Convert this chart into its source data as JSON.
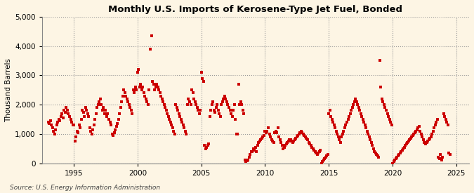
{
  "title": "Monthly U.S. Imports of Kerosene-Type Jet Fuel, Bonded",
  "ylabel": "Thousand Barrels",
  "source": "Source: U.S. Energy Information Administration",
  "background_color": "#fdf5e4",
  "dot_color": "#cc0000",
  "ylim": [
    0,
    5000
  ],
  "yticks": [
    0,
    1000,
    2000,
    3000,
    4000,
    5000
  ],
  "xlim_start": 1992.5,
  "xlim_end": 2026.0,
  "xticks": [
    1995,
    2000,
    2005,
    2010,
    2015,
    2020,
    2025
  ],
  "data_points_by_year_month": [
    [
      1993,
      1,
      1400
    ],
    [
      1993,
      2,
      1350
    ],
    [
      1993,
      3,
      1450
    ],
    [
      1993,
      4,
      1300
    ],
    [
      1993,
      5,
      1200
    ],
    [
      1993,
      6,
      1100
    ],
    [
      1993,
      7,
      1000
    ],
    [
      1993,
      8,
      1150
    ],
    [
      1993,
      9,
      1300
    ],
    [
      1993,
      10,
      1400
    ],
    [
      1993,
      11,
      1500
    ],
    [
      1993,
      12,
      1450
    ],
    [
      1994,
      1,
      1600
    ],
    [
      1994,
      2,
      1700
    ],
    [
      1994,
      3,
      1550
    ],
    [
      1994,
      4,
      1800
    ],
    [
      1994,
      5,
      1750
    ],
    [
      1994,
      6,
      1900
    ],
    [
      1994,
      7,
      1800
    ],
    [
      1994,
      8,
      1700
    ],
    [
      1994,
      9,
      1600
    ],
    [
      1994,
      10,
      1500
    ],
    [
      1994,
      11,
      1400
    ],
    [
      1994,
      12,
      1300
    ],
    [
      1995,
      1,
      1300
    ],
    [
      1995,
      2,
      750
    ],
    [
      1995,
      3,
      900
    ],
    [
      1995,
      4,
      1100
    ],
    [
      1995,
      5,
      1050
    ],
    [
      1995,
      6,
      1300
    ],
    [
      1995,
      7,
      1200
    ],
    [
      1995,
      8,
      1500
    ],
    [
      1995,
      9,
      1800
    ],
    [
      1995,
      10,
      1750
    ],
    [
      1995,
      11,
      1600
    ],
    [
      1995,
      12,
      1900
    ],
    [
      1996,
      1,
      1800
    ],
    [
      1996,
      2,
      1700
    ],
    [
      1996,
      3,
      1600
    ],
    [
      1996,
      4,
      1200
    ],
    [
      1996,
      5,
      1100
    ],
    [
      1996,
      6,
      1000
    ],
    [
      1996,
      7,
      1150
    ],
    [
      1996,
      8,
      1300
    ],
    [
      1996,
      9,
      1500
    ],
    [
      1996,
      10,
      1700
    ],
    [
      1996,
      11,
      1900
    ],
    [
      1996,
      12,
      2000
    ],
    [
      1997,
      1,
      2100
    ],
    [
      1997,
      2,
      2200
    ],
    [
      1997,
      3,
      2000
    ],
    [
      1997,
      4,
      1800
    ],
    [
      1997,
      5,
      1900
    ],
    [
      1997,
      6,
      1700
    ],
    [
      1997,
      7,
      1800
    ],
    [
      1997,
      8,
      1600
    ],
    [
      1997,
      9,
      1700
    ],
    [
      1997,
      10,
      1500
    ],
    [
      1997,
      11,
      1400
    ],
    [
      1997,
      12,
      1300
    ],
    [
      1998,
      1,
      1000
    ],
    [
      1998,
      2,
      950
    ],
    [
      1998,
      3,
      1050
    ],
    [
      1998,
      4,
      1150
    ],
    [
      1998,
      5,
      1250
    ],
    [
      1998,
      6,
      1350
    ],
    [
      1998,
      7,
      1500
    ],
    [
      1998,
      8,
      1700
    ],
    [
      1998,
      9,
      1900
    ],
    [
      1998,
      10,
      2100
    ],
    [
      1998,
      11,
      2300
    ],
    [
      1998,
      12,
      2500
    ],
    [
      1999,
      1,
      2400
    ],
    [
      1999,
      2,
      2300
    ],
    [
      1999,
      3,
      2200
    ],
    [
      1999,
      4,
      2100
    ],
    [
      1999,
      5,
      2000
    ],
    [
      1999,
      6,
      1900
    ],
    [
      1999,
      7,
      1800
    ],
    [
      1999,
      8,
      1700
    ],
    [
      1999,
      9,
      2500
    ],
    [
      1999,
      10,
      2400
    ],
    [
      1999,
      11,
      2600
    ],
    [
      1999,
      12,
      2500
    ],
    [
      2000,
      1,
      3100
    ],
    [
      2000,
      2,
      3200
    ],
    [
      2000,
      3,
      2600
    ],
    [
      2000,
      4,
      2700
    ],
    [
      2000,
      5,
      2500
    ],
    [
      2000,
      6,
      2600
    ],
    [
      2000,
      7,
      2400
    ],
    [
      2000,
      8,
      2300
    ],
    [
      2000,
      9,
      2200
    ],
    [
      2000,
      10,
      2100
    ],
    [
      2000,
      11,
      2000
    ],
    [
      2000,
      12,
      2500
    ],
    [
      2001,
      1,
      3900
    ],
    [
      2001,
      2,
      4350
    ],
    [
      2001,
      3,
      2800
    ],
    [
      2001,
      4,
      2700
    ],
    [
      2001,
      5,
      2500
    ],
    [
      2001,
      6,
      2600
    ],
    [
      2001,
      7,
      2700
    ],
    [
      2001,
      8,
      2600
    ],
    [
      2001,
      9,
      2500
    ],
    [
      2001,
      10,
      2400
    ],
    [
      2001,
      11,
      2300
    ],
    [
      2001,
      12,
      2200
    ],
    [
      2002,
      1,
      2100
    ],
    [
      2002,
      2,
      2000
    ],
    [
      2002,
      3,
      1900
    ],
    [
      2002,
      4,
      1800
    ],
    [
      2002,
      5,
      1700
    ],
    [
      2002,
      6,
      1600
    ],
    [
      2002,
      7,
      1500
    ],
    [
      2002,
      8,
      1400
    ],
    [
      2002,
      9,
      1300
    ],
    [
      2002,
      10,
      1200
    ],
    [
      2002,
      11,
      1100
    ],
    [
      2002,
      12,
      1000
    ],
    [
      2003,
      1,
      2000
    ],
    [
      2003,
      2,
      1900
    ],
    [
      2003,
      3,
      1800
    ],
    [
      2003,
      4,
      1700
    ],
    [
      2003,
      5,
      1600
    ],
    [
      2003,
      6,
      1500
    ],
    [
      2003,
      7,
      1400
    ],
    [
      2003,
      8,
      1300
    ],
    [
      2003,
      9,
      1200
    ],
    [
      2003,
      10,
      1100
    ],
    [
      2003,
      11,
      1000
    ],
    [
      2003,
      12,
      2000
    ],
    [
      2004,
      1,
      2200
    ],
    [
      2004,
      2,
      2100
    ],
    [
      2004,
      3,
      2000
    ],
    [
      2004,
      4,
      2500
    ],
    [
      2004,
      5,
      2400
    ],
    [
      2004,
      6,
      2200
    ],
    [
      2004,
      7,
      2100
    ],
    [
      2004,
      8,
      2000
    ],
    [
      2004,
      9,
      1900
    ],
    [
      2004,
      10,
      1800
    ],
    [
      2004,
      11,
      1700
    ],
    [
      2004,
      12,
      1800
    ],
    [
      2005,
      1,
      3100
    ],
    [
      2005,
      2,
      2900
    ],
    [
      2005,
      3,
      2800
    ],
    [
      2005,
      4,
      600
    ],
    [
      2005,
      5,
      500
    ],
    [
      2005,
      6,
      550
    ],
    [
      2005,
      7,
      600
    ],
    [
      2005,
      8,
      650
    ],
    [
      2005,
      9,
      1600
    ],
    [
      2005,
      10,
      1800
    ],
    [
      2005,
      11,
      2000
    ],
    [
      2005,
      12,
      2100
    ],
    [
      2006,
      1,
      1800
    ],
    [
      2006,
      2,
      1750
    ],
    [
      2006,
      3,
      1900
    ],
    [
      2006,
      4,
      2000
    ],
    [
      2006,
      5,
      1800
    ],
    [
      2006,
      6,
      1700
    ],
    [
      2006,
      7,
      1600
    ],
    [
      2006,
      8,
      2000
    ],
    [
      2006,
      9,
      2100
    ],
    [
      2006,
      10,
      2200
    ],
    [
      2006,
      11,
      2300
    ],
    [
      2006,
      12,
      2200
    ],
    [
      2007,
      1,
      2100
    ],
    [
      2007,
      2,
      2000
    ],
    [
      2007,
      3,
      1900
    ],
    [
      2007,
      4,
      1800
    ],
    [
      2007,
      5,
      1700
    ],
    [
      2007,
      6,
      1600
    ],
    [
      2007,
      7,
      1800
    ],
    [
      2007,
      8,
      2000
    ],
    [
      2007,
      9,
      1500
    ],
    [
      2007,
      10,
      1000
    ],
    [
      2007,
      11,
      1000
    ],
    [
      2007,
      12,
      2700
    ],
    [
      2008,
      1,
      2000
    ],
    [
      2008,
      2,
      2100
    ],
    [
      2008,
      3,
      2000
    ],
    [
      2008,
      4,
      1800
    ],
    [
      2008,
      5,
      1700
    ],
    [
      2008,
      6,
      100
    ],
    [
      2008,
      7,
      50
    ],
    [
      2008,
      8,
      80
    ],
    [
      2008,
      9,
      100
    ],
    [
      2008,
      10,
      200
    ],
    [
      2008,
      11,
      300
    ],
    [
      2008,
      12,
      400
    ],
    [
      2009,
      1,
      400
    ],
    [
      2009,
      2,
      500
    ],
    [
      2009,
      3,
      450
    ],
    [
      2009,
      4,
      550
    ],
    [
      2009,
      5,
      400
    ],
    [
      2009,
      6,
      600
    ],
    [
      2009,
      7,
      700
    ],
    [
      2009,
      8,
      750
    ],
    [
      2009,
      9,
      800
    ],
    [
      2009,
      10,
      850
    ],
    [
      2009,
      11,
      900
    ],
    [
      2009,
      12,
      950
    ],
    [
      2010,
      1,
      1100
    ],
    [
      2010,
      2,
      1050
    ],
    [
      2010,
      3,
      1100
    ],
    [
      2010,
      4,
      1200
    ],
    [
      2010,
      5,
      1000
    ],
    [
      2010,
      6,
      900
    ],
    [
      2010,
      7,
      800
    ],
    [
      2010,
      8,
      750
    ],
    [
      2010,
      9,
      700
    ],
    [
      2010,
      10,
      1050
    ],
    [
      2010,
      11,
      1100
    ],
    [
      2010,
      12,
      1050
    ],
    [
      2011,
      1,
      1200
    ],
    [
      2011,
      2,
      900
    ],
    [
      2011,
      3,
      800
    ],
    [
      2011,
      4,
      700
    ],
    [
      2011,
      5,
      600
    ],
    [
      2011,
      6,
      500
    ],
    [
      2011,
      7,
      550
    ],
    [
      2011,
      8,
      600
    ],
    [
      2011,
      9,
      650
    ],
    [
      2011,
      10,
      700
    ],
    [
      2011,
      11,
      750
    ],
    [
      2011,
      12,
      800
    ],
    [
      2012,
      1,
      800
    ],
    [
      2012,
      2,
      750
    ],
    [
      2012,
      3,
      700
    ],
    [
      2012,
      4,
      750
    ],
    [
      2012,
      5,
      800
    ],
    [
      2012,
      6,
      850
    ],
    [
      2012,
      7,
      900
    ],
    [
      2012,
      8,
      950
    ],
    [
      2012,
      9,
      1000
    ],
    [
      2012,
      10,
      1050
    ],
    [
      2012,
      11,
      1100
    ],
    [
      2012,
      12,
      1050
    ],
    [
      2013,
      1,
      1000
    ],
    [
      2013,
      2,
      950
    ],
    [
      2013,
      3,
      900
    ],
    [
      2013,
      4,
      850
    ],
    [
      2013,
      5,
      800
    ],
    [
      2013,
      6,
      700
    ],
    [
      2013,
      7,
      650
    ],
    [
      2013,
      8,
      600
    ],
    [
      2013,
      9,
      550
    ],
    [
      2013,
      10,
      500
    ],
    [
      2013,
      11,
      450
    ],
    [
      2013,
      12,
      400
    ],
    [
      2014,
      1,
      350
    ],
    [
      2014,
      2,
      300
    ],
    [
      2014,
      3,
      350
    ],
    [
      2014,
      4,
      400
    ],
    [
      2014,
      5,
      450
    ],
    [
      2014,
      6,
      0
    ],
    [
      2014,
      7,
      50
    ],
    [
      2014,
      8,
      100
    ],
    [
      2014,
      9,
      150
    ],
    [
      2014,
      10,
      200
    ],
    [
      2014,
      11,
      250
    ],
    [
      2014,
      12,
      300
    ],
    [
      2015,
      1,
      1700
    ],
    [
      2015,
      2,
      1800
    ],
    [
      2015,
      3,
      1600
    ],
    [
      2015,
      4,
      1500
    ],
    [
      2015,
      5,
      1400
    ],
    [
      2015,
      6,
      1300
    ],
    [
      2015,
      7,
      1200
    ],
    [
      2015,
      8,
      1100
    ],
    [
      2015,
      9,
      1000
    ],
    [
      2015,
      10,
      900
    ],
    [
      2015,
      11,
      800
    ],
    [
      2015,
      12,
      700
    ],
    [
      2016,
      1,
      900
    ],
    [
      2016,
      2,
      1000
    ],
    [
      2016,
      3,
      1100
    ],
    [
      2016,
      4,
      1200
    ],
    [
      2016,
      5,
      1300
    ],
    [
      2016,
      6,
      1400
    ],
    [
      2016,
      7,
      1500
    ],
    [
      2016,
      8,
      1600
    ],
    [
      2016,
      9,
      1700
    ],
    [
      2016,
      10,
      1800
    ],
    [
      2016,
      11,
      1900
    ],
    [
      2016,
      12,
      2000
    ],
    [
      2017,
      1,
      2100
    ],
    [
      2017,
      2,
      2200
    ],
    [
      2017,
      3,
      2100
    ],
    [
      2017,
      4,
      2000
    ],
    [
      2017,
      5,
      1900
    ],
    [
      2017,
      6,
      1800
    ],
    [
      2017,
      7,
      1700
    ],
    [
      2017,
      8,
      1600
    ],
    [
      2017,
      9,
      1500
    ],
    [
      2017,
      10,
      1400
    ],
    [
      2017,
      11,
      1300
    ],
    [
      2017,
      12,
      1200
    ],
    [
      2018,
      1,
      1100
    ],
    [
      2018,
      2,
      1000
    ],
    [
      2018,
      3,
      900
    ],
    [
      2018,
      4,
      800
    ],
    [
      2018,
      5,
      700
    ],
    [
      2018,
      6,
      600
    ],
    [
      2018,
      7,
      500
    ],
    [
      2018,
      8,
      400
    ],
    [
      2018,
      9,
      350
    ],
    [
      2018,
      10,
      300
    ],
    [
      2018,
      11,
      250
    ],
    [
      2018,
      12,
      200
    ],
    [
      2019,
      1,
      3500
    ],
    [
      2019,
      2,
      2600
    ],
    [
      2019,
      3,
      2200
    ],
    [
      2019,
      4,
      2100
    ],
    [
      2019,
      5,
      2000
    ],
    [
      2019,
      6,
      1900
    ],
    [
      2019,
      7,
      1800
    ],
    [
      2019,
      8,
      1700
    ],
    [
      2019,
      9,
      1600
    ],
    [
      2019,
      10,
      1500
    ],
    [
      2019,
      11,
      1400
    ],
    [
      2019,
      12,
      1300
    ],
    [
      2020,
      1,
      0
    ],
    [
      2020,
      2,
      50
    ],
    [
      2020,
      3,
      100
    ],
    [
      2020,
      4,
      150
    ],
    [
      2020,
      5,
      200
    ],
    [
      2020,
      6,
      250
    ],
    [
      2020,
      7,
      300
    ],
    [
      2020,
      8,
      350
    ],
    [
      2020,
      9,
      400
    ],
    [
      2020,
      10,
      450
    ],
    [
      2020,
      11,
      500
    ],
    [
      2020,
      12,
      550
    ],
    [
      2021,
      1,
      600
    ],
    [
      2021,
      2,
      650
    ],
    [
      2021,
      3,
      700
    ],
    [
      2021,
      4,
      750
    ],
    [
      2021,
      5,
      800
    ],
    [
      2021,
      6,
      850
    ],
    [
      2021,
      7,
      900
    ],
    [
      2021,
      8,
      950
    ],
    [
      2021,
      9,
      1000
    ],
    [
      2021,
      10,
      1050
    ],
    [
      2021,
      11,
      1100
    ],
    [
      2021,
      12,
      1150
    ],
    [
      2022,
      1,
      1200
    ],
    [
      2022,
      2,
      1250
    ],
    [
      2022,
      3,
      1100
    ],
    [
      2022,
      4,
      1000
    ],
    [
      2022,
      5,
      900
    ],
    [
      2022,
      6,
      800
    ],
    [
      2022,
      7,
      700
    ],
    [
      2022,
      8,
      650
    ],
    [
      2022,
      9,
      700
    ],
    [
      2022,
      10,
      750
    ],
    [
      2022,
      11,
      800
    ],
    [
      2022,
      12,
      850
    ],
    [
      2023,
      1,
      900
    ],
    [
      2023,
      2,
      1000
    ],
    [
      2023,
      3,
      1100
    ],
    [
      2023,
      4,
      1200
    ],
    [
      2023,
      5,
      1300
    ],
    [
      2023,
      6,
      1400
    ],
    [
      2023,
      7,
      1500
    ],
    [
      2023,
      8,
      200
    ],
    [
      2023,
      9,
      150
    ],
    [
      2023,
      10,
      300
    ],
    [
      2023,
      11,
      100
    ],
    [
      2023,
      12,
      200
    ],
    [
      2024,
      1,
      1700
    ],
    [
      2024,
      2,
      1600
    ],
    [
      2024,
      3,
      1500
    ],
    [
      2024,
      4,
      1400
    ],
    [
      2024,
      5,
      1300
    ],
    [
      2024,
      6,
      350
    ],
    [
      2024,
      7,
      300
    ]
  ]
}
